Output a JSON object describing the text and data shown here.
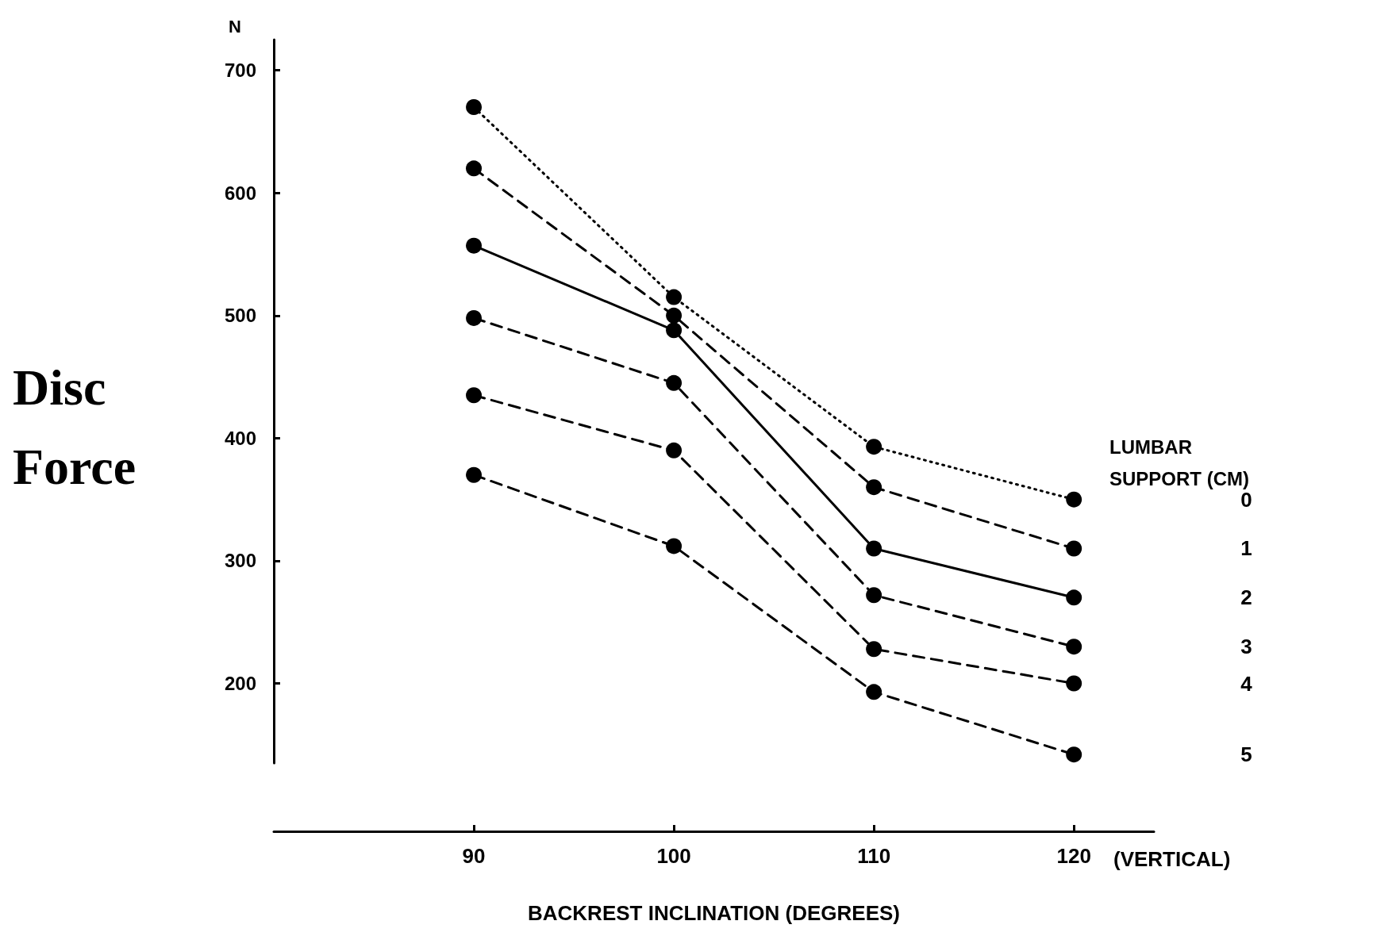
{
  "chart_data": {
    "type": "line",
    "xlabel": "BACKREST INCLINATION (DEGREES)",
    "ylabel": "Disc Force",
    "legend_title": "LUMBAR SUPPORT (CM)",
    "annotations": [
      "N",
      "(VERTICAL)"
    ],
    "x": [
      90,
      100,
      110,
      120
    ],
    "xlim": [
      80,
      124
    ],
    "xticks": [
      90,
      100,
      110,
      120
    ],
    "ylim": [
      135,
      725
    ],
    "yticks": [
      200,
      300,
      400,
      500,
      600,
      700
    ],
    "grid": false,
    "legend": "right",
    "marker": "circle",
    "series": [
      {
        "name": "0",
        "color": "#000000",
        "line_style": "dotted",
        "values": [
          670,
          515,
          393,
          350
        ]
      },
      {
        "name": "1",
        "color": "#000000",
        "line_style": "dashed",
        "values": [
          620,
          500,
          360,
          310
        ]
      },
      {
        "name": "2",
        "color": "#000000",
        "line_style": "solid",
        "values": [
          557,
          488,
          310,
          270
        ]
      },
      {
        "name": "3",
        "color": "#000000",
        "line_style": "dashed",
        "values": [
          498,
          445,
          272,
          230
        ]
      },
      {
        "name": "4",
        "color": "#000000",
        "line_style": "dashed",
        "values": [
          435,
          390,
          228,
          200
        ]
      },
      {
        "name": "5",
        "color": "#000000",
        "line_style": "dashed",
        "values": [
          370,
          312,
          193,
          142
        ]
      }
    ]
  }
}
